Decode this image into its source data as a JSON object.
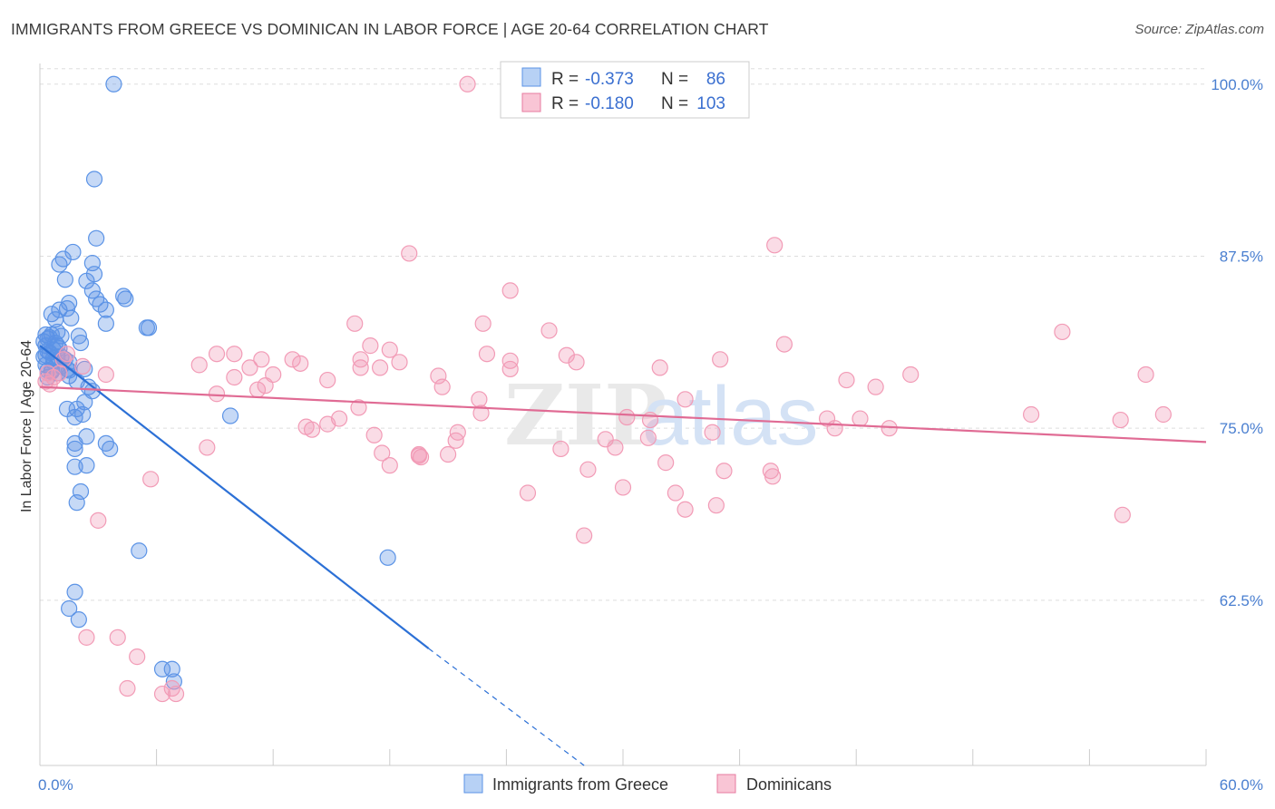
{
  "title": "IMMIGRANTS FROM GREECE VS DOMINICAN IN LABOR FORCE | AGE 20-64 CORRELATION CHART",
  "source": "Source: ZipAtlas.com",
  "watermark": {
    "zip": "ZIP",
    "atlas": "atlas"
  },
  "chart_data": {
    "type": "scatter",
    "xlabel": "",
    "ylabel": "In Labor Force | Age 20-64",
    "xlim": [
      0,
      60
    ],
    "ylim": [
      50.5,
      101.5
    ],
    "x_tick_labels": [
      "0.0%",
      "60.0%"
    ],
    "y_ticks": [
      62.5,
      75.0,
      87.5,
      100.0
    ],
    "y_tick_labels": [
      "62.5%",
      "75.0%",
      "87.5%",
      "100.0%"
    ],
    "grid": true,
    "legend_placement": "top-center",
    "series": [
      {
        "name": "Immigrants from Greece",
        "color": "#5b93e6",
        "line_color": "#2c70d6",
        "R": "-0.373",
        "N": "86",
        "trend": {
          "x0": 0.0,
          "y0": 81.0,
          "x1": 20.0,
          "y1": 59.0,
          "dash_to_x": 28.0,
          "dash_to_y": 50.5
        },
        "x": [
          3.8,
          2.8,
          2.9,
          2.7,
          2.8,
          2.4,
          2.7,
          2.9,
          3.1,
          3.4,
          4.4,
          3.4,
          4.3,
          5.5,
          5.6,
          1.7,
          1.2,
          1.0,
          1.3,
          1.5,
          1.0,
          1.4,
          1.6,
          0.6,
          0.8,
          0.9,
          0.6,
          1.1,
          0.4,
          0.8,
          0.9,
          0.7,
          1.0,
          0.5,
          0.3,
          0.7,
          1.1,
          1.3,
          1.5,
          0.7,
          1.1,
          1.4,
          0.4,
          0.6,
          0.9,
          1.5,
          2.0,
          2.1,
          2.3,
          1.9,
          2.5,
          2.7,
          2.3,
          1.4,
          1.8,
          2.2,
          1.9,
          2.4,
          1.8,
          3.4,
          3.6,
          1.8,
          1.8,
          2.4,
          2.1,
          1.9,
          5.1,
          9.8,
          17.9,
          1.8,
          1.5,
          2.0,
          6.3,
          6.8,
          6.9,
          0.3,
          0.5,
          0.2,
          0.3,
          0.4,
          0.2,
          0.3,
          0.6,
          0.4,
          1.5,
          0.9
        ],
        "y": [
          100.0,
          93.1,
          88.8,
          87.0,
          86.2,
          85.7,
          85.0,
          84.4,
          84.0,
          82.6,
          84.4,
          83.6,
          84.6,
          82.3,
          82.3,
          87.8,
          87.3,
          86.9,
          85.8,
          84.1,
          83.6,
          83.7,
          83.0,
          83.3,
          82.9,
          82.0,
          81.8,
          81.7,
          81.5,
          81.2,
          81.0,
          80.7,
          80.8,
          80.5,
          80.3,
          80.1,
          80.2,
          80.0,
          79.8,
          79.8,
          79.5,
          79.3,
          79.2,
          79.2,
          79.0,
          78.8,
          81.7,
          81.2,
          79.3,
          78.4,
          78.0,
          77.7,
          76.9,
          76.4,
          75.8,
          76.0,
          76.4,
          74.4,
          73.9,
          73.9,
          73.5,
          73.5,
          72.2,
          72.3,
          70.4,
          69.6,
          66.1,
          75.9,
          65.6,
          63.1,
          61.9,
          61.1,
          57.5,
          57.5,
          56.6,
          81.8,
          81.6,
          81.3,
          81.0,
          80.6,
          80.2,
          79.6,
          79.1,
          78.7,
          79.2,
          80.2
        ]
      },
      {
        "name": "Dominicans",
        "color": "#f29bb6",
        "line_color": "#e06b94",
        "R": "-0.180",
        "N": "103",
        "trend": {
          "x0": 0.0,
          "y0": 78.0,
          "x1": 60.0,
          "y1": 74.0
        },
        "x": [
          22.0,
          19.0,
          24.2,
          37.8,
          26.2,
          22.8,
          9.1,
          10.0,
          18.0,
          23.0,
          38.3,
          35.0,
          52.6,
          57.8,
          8.2,
          10.8,
          13.0,
          13.4,
          16.5,
          18.5,
          16.2,
          17.0,
          10.0,
          12.0,
          9.1,
          16.5,
          17.5,
          24.2,
          16.4,
          15.4,
          13.7,
          14.8,
          14.0,
          19.6,
          19.5,
          21.4,
          21.5,
          25.1,
          30.2,
          30.0,
          32.7,
          31.4,
          33.2,
          37.6,
          34.8,
          42.2,
          40.5,
          40.9,
          43.7,
          44.8,
          56.9,
          51.0,
          55.7,
          41.5,
          43.0,
          33.2,
          29.1,
          28.2,
          26.8,
          21.0,
          19.5,
          18.0,
          17.6,
          22.6,
          17.2,
          22.7,
          20.7,
          20.5,
          27.6,
          24.2,
          31.9,
          31.3,
          32.2,
          29.6,
          35.2,
          37.7,
          34.6,
          28.0,
          55.6,
          8.6,
          5.7,
          3.0,
          2.4,
          4.0,
          5.0,
          7.0,
          6.3,
          6.8,
          4.5,
          1.0,
          0.7,
          0.4,
          0.3,
          0.5,
          1.2,
          1.4,
          2.2,
          3.4,
          11.2,
          11.6,
          11.4,
          27.1,
          14.8
        ],
        "y": [
          100.0,
          87.7,
          85.0,
          88.3,
          82.1,
          82.6,
          80.4,
          80.4,
          80.7,
          80.4,
          81.1,
          80.0,
          82.0,
          76.0,
          79.6,
          79.4,
          80.0,
          79.7,
          80.0,
          79.8,
          82.6,
          81.0,
          78.7,
          78.9,
          77.5,
          79.4,
          79.4,
          79.9,
          76.5,
          75.7,
          75.1,
          75.3,
          74.9,
          72.9,
          73.0,
          74.1,
          74.7,
          70.3,
          75.8,
          70.7,
          70.3,
          75.6,
          69.1,
          71.9,
          69.4,
          75.7,
          75.7,
          75.0,
          75.0,
          78.9,
          78.9,
          76.0,
          68.7,
          78.5,
          78.0,
          77.1,
          74.2,
          72.0,
          73.5,
          73.1,
          73.1,
          72.3,
          73.2,
          77.1,
          74.5,
          76.1,
          78.0,
          78.8,
          79.8,
          79.3,
          79.4,
          74.3,
          72.5,
          73.6,
          71.9,
          71.5,
          74.7,
          67.2,
          75.6,
          73.6,
          71.3,
          68.3,
          59.8,
          59.8,
          58.4,
          55.7,
          55.7,
          56.1,
          56.1,
          79.0,
          78.7,
          79.0,
          78.4,
          78.2,
          80.0,
          80.4,
          79.5,
          78.9,
          77.8,
          78.1,
          80.0,
          80.3,
          78.5
        ]
      }
    ]
  },
  "legend": {
    "rows": [
      {
        "r_label": "R =",
        "r_value": "-0.373",
        "n_label": "N =",
        "n_value": "86"
      },
      {
        "r_label": "R =",
        "r_value": "-0.180",
        "n_label": "N =",
        "n_value": "103"
      }
    ]
  },
  "bottom_legend": [
    "Immigrants from Greece",
    "Dominicans"
  ]
}
